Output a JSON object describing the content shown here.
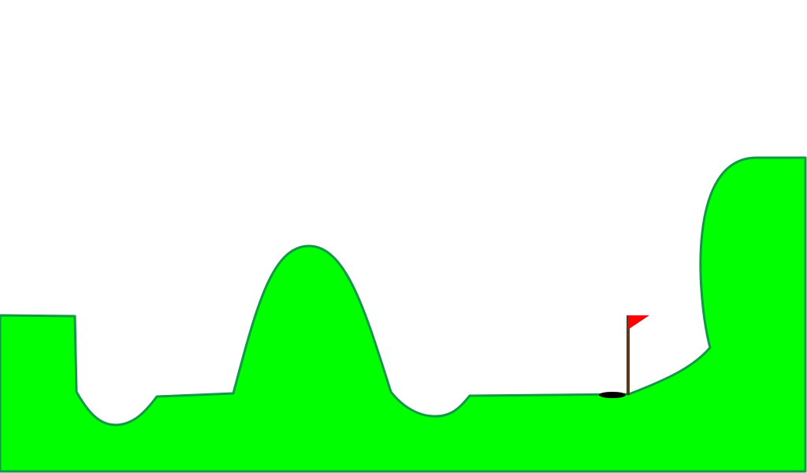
{
  "scene": {
    "background_color": "#ffffff"
  },
  "terrain": {
    "name": "golf-course-terrain",
    "fill_color": "#00ff00",
    "stroke_color": "#119944"
  },
  "hole": {
    "name": "golf-hole",
    "color": "#000000"
  },
  "flag": {
    "name": "hole-flag",
    "pole_color": "#5a3a1a",
    "flag_color": "#ff0000",
    "icon": "flag-icon"
  }
}
